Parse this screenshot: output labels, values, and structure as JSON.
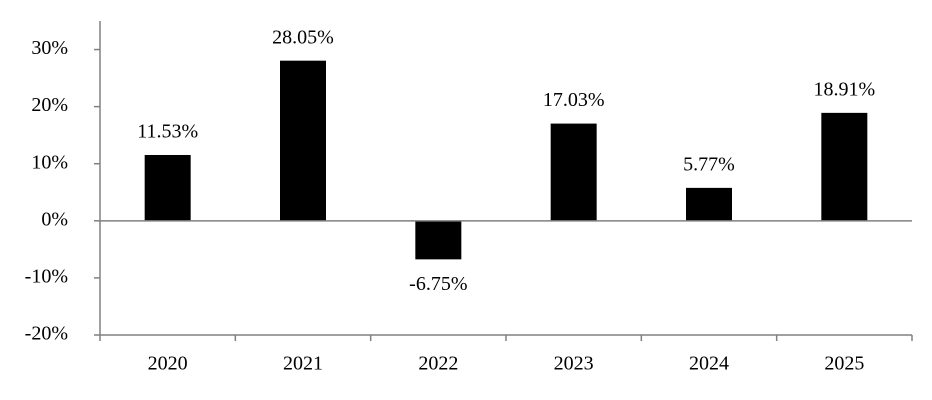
{
  "chart_data": {
    "type": "bar",
    "categories": [
      "2020",
      "2021",
      "2022",
      "2023",
      "2024",
      "2025"
    ],
    "values": [
      11.53,
      28.05,
      -6.75,
      17.03,
      5.77,
      18.91
    ],
    "value_labels": [
      "11.53%",
      "28.05%",
      "-6.75%",
      "17.03%",
      "5.77%",
      "18.91%"
    ],
    "color": "#000000",
    "ylim": [
      -20,
      35
    ],
    "yticks": [
      {
        "value": -20,
        "label": "-20%"
      },
      {
        "value": -10,
        "label": "-10%"
      },
      {
        "value": 0,
        "label": "0%"
      },
      {
        "value": 10,
        "label": "10%"
      },
      {
        "value": 20,
        "label": "20%"
      },
      {
        "value": 30,
        "label": "30%"
      }
    ]
  }
}
